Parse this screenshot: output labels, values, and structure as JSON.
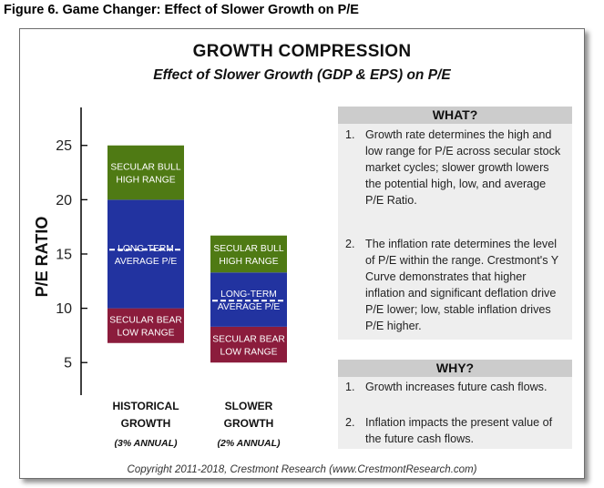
{
  "figure_title": "Figure 6. Game Changer: Effect of Slower Growth on P/E",
  "chart_data": {
    "type": "bar",
    "title": "GROWTH COMPRESSION",
    "subtitle": "Effect of Slower Growth (GDP & EPS) on P/E",
    "ylabel": "P/E RATIO",
    "ylim": [
      2,
      28.5
    ],
    "yticks": [
      5,
      10,
      15,
      20,
      25
    ],
    "bars": [
      {
        "category_lines": [
          "HISTORICAL",
          "GROWTH",
          "(3% ANNUAL)"
        ],
        "segments": [
          {
            "name": "low",
            "from": 6.8,
            "to": 10.0,
            "label_lines": [
              "SECULAR BEAR",
              "LOW RANGE"
            ],
            "color": "#8b1c3c"
          },
          {
            "name": "average",
            "from": 10.0,
            "to": 20.0,
            "label_lines": [
              "LONG-TERM",
              "AVERAGE P/E"
            ],
            "color": "#2233a0"
          },
          {
            "name": "high",
            "from": 20.0,
            "to": 25.0,
            "label_lines": [
              "SECULAR BULL",
              "HIGH RANGE"
            ],
            "color": "#4f7a14"
          }
        ],
        "average": 15.4
      },
      {
        "category_lines": [
          "SLOWER",
          "GROWTH",
          "(2% ANNUAL)"
        ],
        "segments": [
          {
            "name": "low",
            "from": 5.0,
            "to": 8.3,
            "label_lines": [
              "SECULAR BEAR",
              "LOW RANGE"
            ],
            "color": "#8b1c3c"
          },
          {
            "name": "average",
            "from": 8.3,
            "to": 13.3,
            "label_lines": [
              "LONG-TERM",
              "AVERAGE P/E"
            ],
            "color": "#2233a0"
          },
          {
            "name": "high",
            "from": 13.3,
            "to": 16.7,
            "label_lines": [
              "SECULAR BULL",
              "HIGH RANGE"
            ],
            "color": "#4f7a14"
          }
        ],
        "average": 10.7
      }
    ]
  },
  "what_panel": {
    "heading": "WHAT?",
    "items": [
      {
        "num": "1.",
        "text": "Growth rate determines the high and low range for P/E across secular stock market cycles; slower growth lowers the potential high, low, and average P/E Ratio."
      },
      {
        "num": "2.",
        "text": "The inflation rate determines the level of P/E within the range. Crestmont's Y Curve demonstrates that higher inflation and significant deflation drive P/E lower; low, stable inflation drives P/E higher."
      }
    ]
  },
  "why_panel": {
    "heading": "WHY?",
    "items": [
      {
        "num": "1.",
        "text": "Growth increases future cash flows."
      },
      {
        "num": "2.",
        "text": "Inflation impacts the present value of the future cash flows."
      }
    ]
  },
  "copyright": "Copyright 2011-2018, Crestmont Research (www.CrestmontResearch.com)"
}
